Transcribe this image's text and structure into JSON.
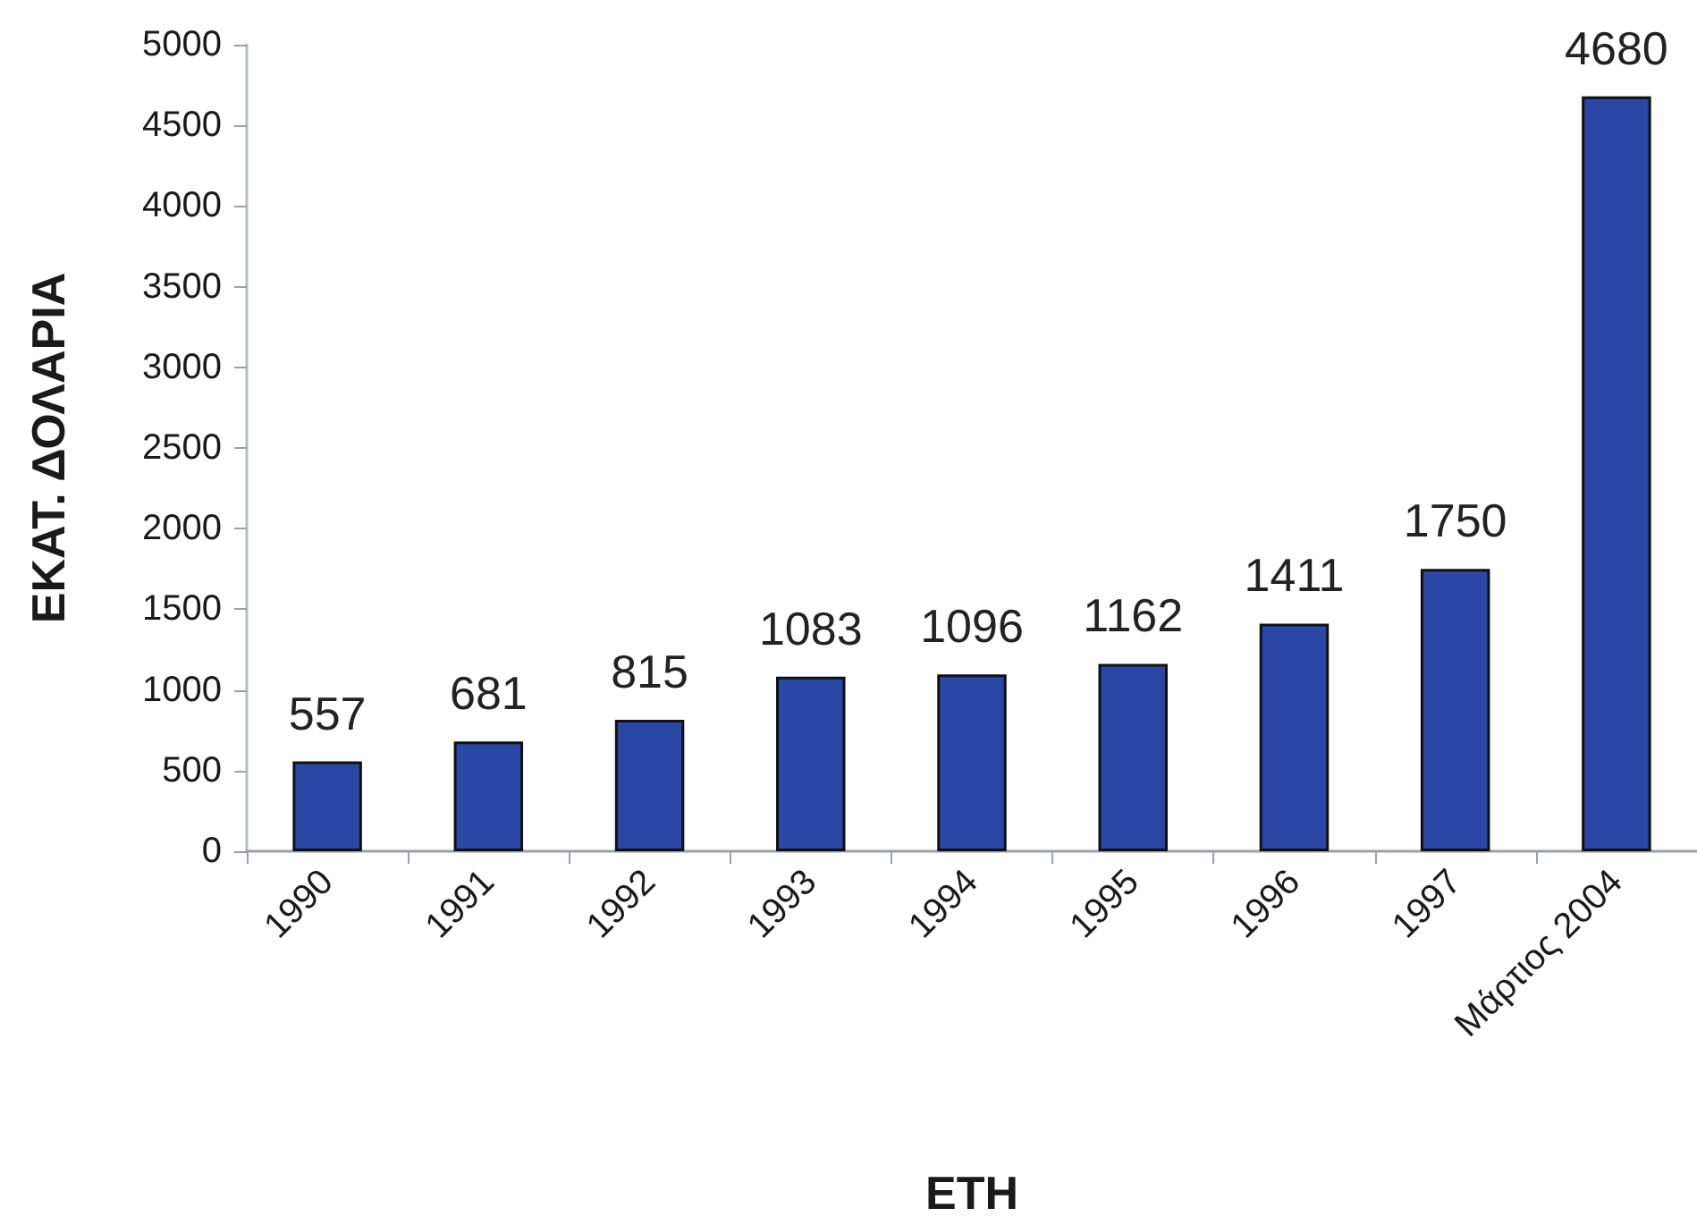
{
  "chart_data": {
    "type": "bar",
    "xlabel": "ΕΤΗ",
    "ylabel": "ΕΚΑΤ. ΔΟΛΑΡΙΑ",
    "categories": [
      "1990",
      "1991",
      "1992",
      "1993",
      "1994",
      "1995",
      "1996",
      "1997",
      "Μάρτιος 2004"
    ],
    "values": [
      557,
      681,
      815,
      1083,
      1096,
      1162,
      1411,
      1750,
      4680
    ],
    "color": "#2a47a6",
    "ylim": [
      0,
      5000
    ],
    "yticks": [
      0,
      500,
      1000,
      1500,
      2000,
      2500,
      3000,
      3500,
      4000,
      4500,
      5000
    ],
    "data_labels": true
  }
}
